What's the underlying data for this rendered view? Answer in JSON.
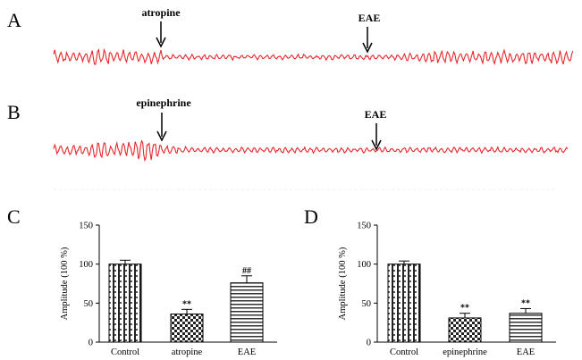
{
  "panels": {
    "a": {
      "letter": "A",
      "markers": [
        "atropine",
        "EAE"
      ]
    },
    "b": {
      "letter": "B",
      "markers": [
        "epinephrine",
        "EAE"
      ]
    },
    "c": {
      "letter": "C"
    },
    "d": {
      "letter": "D"
    }
  },
  "colors": {
    "trace": "#e8262b",
    "axis": "#000000"
  },
  "chart_data": [
    {
      "type": "line",
      "panel": "A",
      "title": "",
      "annotations": [
        "atropine",
        "EAE"
      ],
      "description_values": {
        "segments": [
          "baseline high-amplitude",
          "after atropine: reduced",
          "after EAE: recovered"
        ]
      },
      "amplitude_profile": [
        1.0,
        0.35,
        0.75
      ]
    },
    {
      "type": "line",
      "panel": "B",
      "title": "",
      "annotations": [
        "epinephrine",
        "EAE"
      ],
      "amplitude_profile": [
        1.0,
        0.3,
        0.35
      ]
    },
    {
      "type": "bar",
      "panel": "C",
      "categories": [
        "Control",
        "atropine",
        "EAE"
      ],
      "values": [
        100,
        36,
        76
      ],
      "errors": [
        5,
        6,
        9
      ],
      "significance": [
        "",
        "**",
        "##"
      ],
      "ylabel": "Amplitude (100 %)",
      "ylim": [
        0,
        150
      ],
      "yticks": [
        "0",
        "50",
        "100",
        "150"
      ],
      "patterns": [
        "vertical-stripe",
        "checker",
        "horizontal-stripe"
      ]
    },
    {
      "type": "bar",
      "panel": "D",
      "categories": [
        "Control",
        "epinephrine",
        "EAE"
      ],
      "values": [
        100,
        31,
        37
      ],
      "errors": [
        4,
        6,
        6
      ],
      "significance": [
        "",
        "**",
        "**"
      ],
      "ylabel": "Amplitude (100 %)",
      "ylim": [
        0,
        150
      ],
      "yticks": [
        "0",
        "50",
        "100",
        "150"
      ],
      "patterns": [
        "vertical-stripe",
        "checker",
        "horizontal-stripe"
      ]
    }
  ]
}
